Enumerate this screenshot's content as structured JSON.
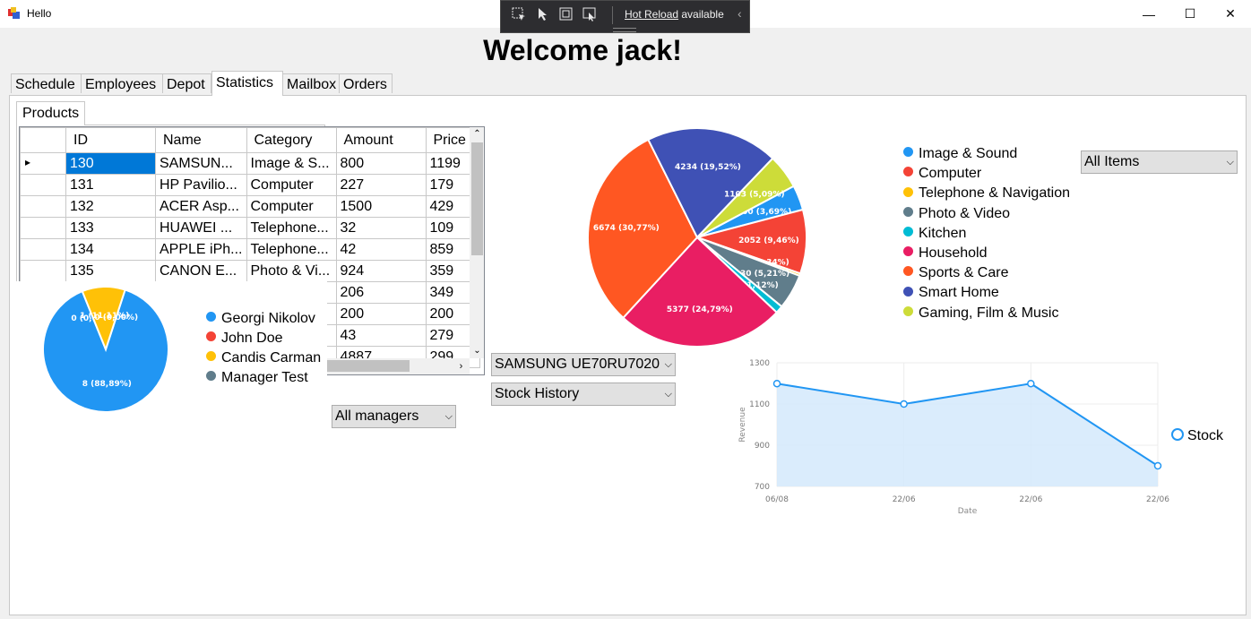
{
  "window": {
    "title": "Hello",
    "minimize": "—",
    "maximize": "☐",
    "close": "✕"
  },
  "hot_reload": {
    "label": "Hot Reload",
    "suffix": " available",
    "collapse": "‹"
  },
  "welcome": "Welcome jack!",
  "tabs": [
    "Schedule",
    "Employees",
    "Depot",
    "Statistics",
    "Mailbox",
    "Orders"
  ],
  "active_tab": "Statistics",
  "subtab": "Products",
  "grid": {
    "columns": [
      "ID",
      "Name",
      "Category",
      "Amount",
      "Price"
    ],
    "rows": [
      [
        "130",
        "SAMSUN...",
        "Image & S...",
        "800",
        "1199"
      ],
      [
        "131",
        "HP Pavilio...",
        "Computer",
        "227",
        "179"
      ],
      [
        "132",
        "ACER Asp...",
        "Computer",
        "1500",
        "429"
      ],
      [
        "133",
        "HUAWEI ...",
        "Telephone...",
        "32",
        "109"
      ],
      [
        "134",
        "APPLE iPh...",
        "Telephone...",
        "42",
        "859"
      ],
      [
        "135",
        "CANON E...",
        "Photo & Vi...",
        "924",
        "359"
      ],
      [
        "",
        "",
        "",
        "206",
        "349"
      ],
      [
        "",
        "",
        "",
        "200",
        "200"
      ],
      [
        "",
        "",
        "",
        "43",
        "279"
      ],
      [
        "",
        "",
        "",
        "4887",
        "299"
      ]
    ]
  },
  "managers_pie": {
    "labels": [
      "0 (0,00%)",
      "1 (11,11%)",
      "0 (0,00%)",
      "8 (88,89%)"
    ],
    "legend": [
      {
        "name": "Georgi Nikolov",
        "color": "#2196f3"
      },
      {
        "name": "John Doe",
        "color": "#f44336"
      },
      {
        "name": "Candis Carman",
        "color": "#ffc107"
      },
      {
        "name": "Manager Test",
        "color": "#607d8b"
      }
    ]
  },
  "combos": {
    "managers": "All managers",
    "product": "SAMSUNG UE70RU7020",
    "history": "Stock History",
    "items": "All Items"
  },
  "chart_data": [
    {
      "type": "pie",
      "title": "",
      "slices": [
        {
          "name": "Georgi Nikolov",
          "value": 8,
          "label": "8 (88,89%)",
          "color": "#2196f3"
        },
        {
          "name": "John Doe",
          "value": 0,
          "label": "0 (0,00%)",
          "color": "#f44336"
        },
        {
          "name": "Candis Carman",
          "value": 1,
          "label": "1 (11,11%)",
          "color": "#ffc107"
        },
        {
          "name": "Manager Test",
          "value": 0,
          "label": "0 (0,00%)",
          "color": "#607d8b"
        }
      ]
    },
    {
      "type": "pie",
      "title": "",
      "slices": [
        {
          "name": "Image & Sound",
          "value": 800,
          "label": "800 (3,69%)",
          "color": "#2196f3"
        },
        {
          "name": "Computer",
          "value": 2052,
          "label": "2052 (9,46%)",
          "color": "#f44336"
        },
        {
          "name": "Telephone & Navigation",
          "value": 74,
          "label": "74 (0,34%)",
          "color": "#ffc107"
        },
        {
          "name": "Photo & Video",
          "value": 1130,
          "label": "1130 (5,21%)",
          "color": "#607d8b"
        },
        {
          "name": "Kitchen",
          "value": 243,
          "label": "243 (1,12%)",
          "color": "#00bcd4"
        },
        {
          "name": "Household",
          "value": 5377,
          "label": "5377 (24,79%)",
          "color": "#e91e63"
        },
        {
          "name": "Sports & Care",
          "value": 6674,
          "label": "6674 (30,77%)",
          "color": "#ff5722"
        },
        {
          "name": "Smart Home",
          "value": 4234,
          "label": "4234 (19,52%)",
          "color": "#3f51b5"
        },
        {
          "name": "Gaming, Film & Music",
          "value": 1103,
          "label": "1103 (5,09%)",
          "color": "#cddc39"
        }
      ]
    },
    {
      "type": "area",
      "title": "",
      "xlabel": "Date",
      "ylabel": "Revenue",
      "x": [
        "06/08",
        "22/06",
        "22/06",
        "22/06"
      ],
      "yticks": [
        700,
        900,
        1100,
        1300
      ],
      "ylim": [
        700,
        1300
      ],
      "series": [
        {
          "name": "Stock",
          "values": [
            1199,
            1100,
            1199,
            800
          ],
          "color": "#2196f3"
        }
      ],
      "grid": true,
      "legend": "right"
    }
  ]
}
